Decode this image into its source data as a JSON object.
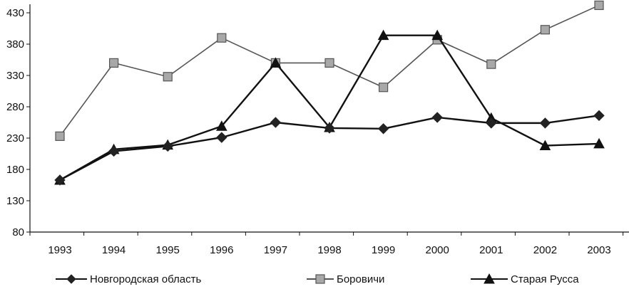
{
  "chart_data": {
    "type": "line",
    "categories": [
      "1993",
      "1994",
      "1995",
      "1996",
      "1997",
      "1998",
      "1999",
      "2000",
      "2001",
      "2002",
      "2003"
    ],
    "ylim": [
      80,
      440
    ],
    "yticks": [
      80,
      130,
      180,
      230,
      280,
      330,
      380,
      430
    ],
    "ytick_labels": [
      "80",
      "130",
      "180",
      "230",
      "280",
      "330",
      "380",
      "430"
    ],
    "grid": false,
    "legend": "bottom",
    "series": [
      {
        "name": "Новгородская область",
        "marker": "diamond",
        "color": "#222222",
        "values": [
          163,
          209,
          217,
          231,
          255,
          246,
          245,
          263,
          254,
          254,
          266
        ]
      },
      {
        "name": "Боровичи",
        "marker": "square",
        "color": "#555555",
        "values": [
          233,
          350,
          328,
          390,
          350,
          350,
          311,
          387,
          348,
          403,
          442
        ]
      },
      {
        "name": "Старая Русса",
        "marker": "triangle",
        "color": "#111111",
        "values": [
          163,
          212,
          219,
          249,
          350,
          247,
          394,
          394,
          262,
          218,
          221
        ]
      }
    ]
  }
}
